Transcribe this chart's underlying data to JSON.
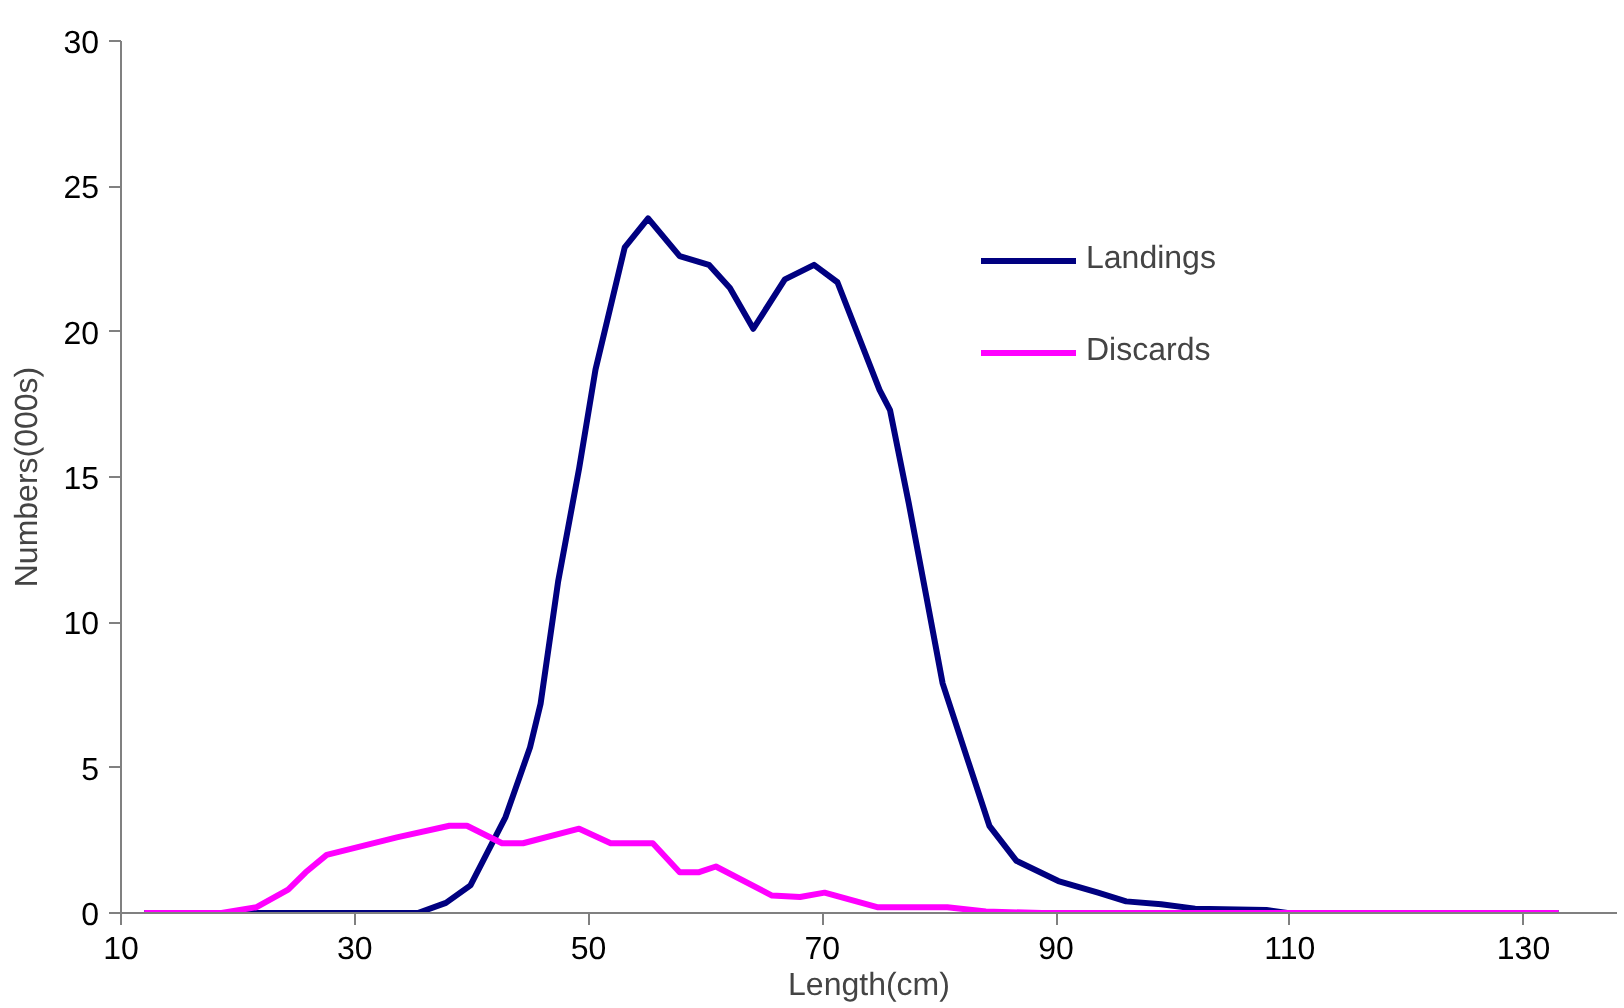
{
  "chart_data": {
    "type": "line",
    "xlabel": "Length(cm)",
    "ylabel": "Numbers(000s)",
    "xlim": [
      10,
      138
    ],
    "xticks": [
      10,
      30,
      50,
      70,
      90,
      110,
      130
    ],
    "ylim": [
      0,
      30
    ],
    "yticks": [
      0,
      5,
      10,
      15,
      20,
      25,
      30
    ],
    "grid": false,
    "legend": "top right",
    "marker": "none",
    "line_style": "solid",
    "series": [
      {
        "name": "Landings",
        "color": "#000080",
        "x": [
          12,
          29.4,
          35.4,
          37.8,
          39.9,
          42.9,
          45.0,
          45.9,
          47.4,
          49.2,
          50.6,
          53.1,
          55.1,
          57.8,
          60.3,
          62.1,
          64.1,
          66.8,
          69.3,
          71.3,
          74.9,
          75.8,
          77.4,
          78.9,
          80.3,
          82.5,
          84.3,
          86.6,
          90.2,
          93.6,
          96.0,
          99.0,
          101.9,
          108,
          109.8,
          133
        ],
        "values": [
          0,
          0,
          0,
          0.35,
          0.95,
          3.3,
          5.7,
          7.2,
          11.4,
          15.3,
          18.7,
          22.9,
          23.9,
          22.6,
          22.3,
          21.5,
          20.1,
          21.8,
          22.3,
          21.7,
          18.0,
          17.3,
          14.1,
          10.9,
          7.9,
          5.2,
          3.0,
          1.8,
          1.1,
          0.7,
          0.4,
          0.3,
          0.15,
          0.1,
          0,
          0
        ]
      },
      {
        "name": "Discards",
        "color": "#ff00ff",
        "x": [
          12,
          18.6,
          21.6,
          24.3,
          25.8,
          27.6,
          33.6,
          38.1,
          39.6,
          42.6,
          44.4,
          49.2,
          51.9,
          55.5,
          57.8,
          59.4,
          60.9,
          65.7,
          68.1,
          70.2,
          74.7,
          80.7,
          84,
          88.8,
          133
        ],
        "values": [
          0,
          0,
          0.2,
          0.8,
          1.4,
          2.0,
          2.6,
          3.0,
          3.0,
          2.4,
          2.4,
          2.9,
          2.4,
          2.4,
          1.4,
          1.4,
          1.6,
          0.6,
          0.55,
          0.7,
          0.2,
          0.2,
          0.05,
          0,
          0
        ]
      }
    ]
  }
}
